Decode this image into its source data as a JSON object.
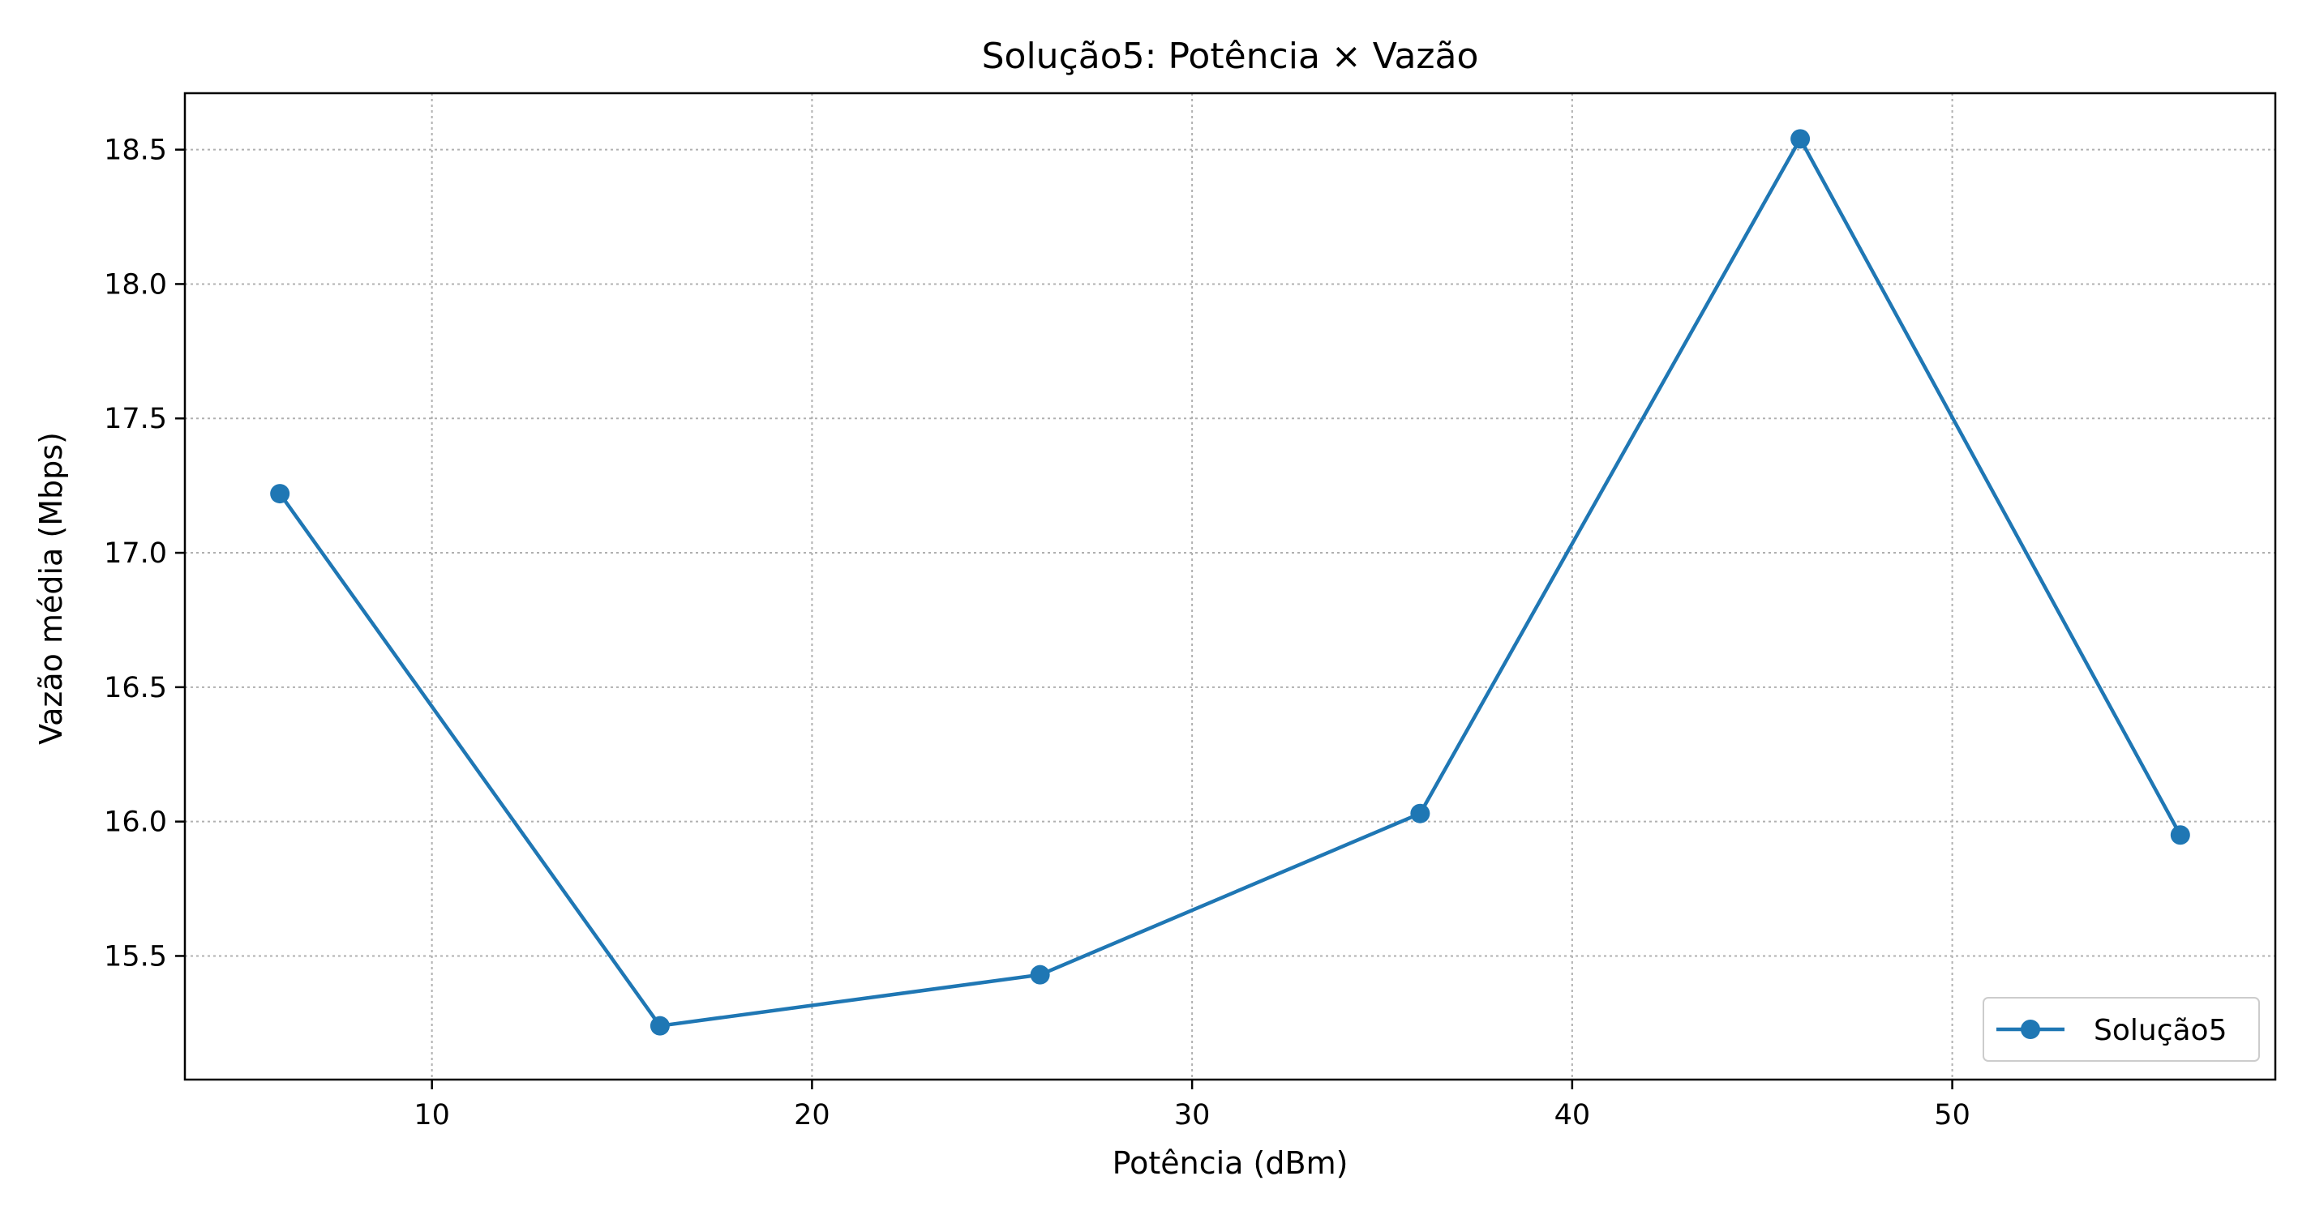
{
  "chart_data": {
    "type": "line",
    "title": "Solução5: Potência × Vazão",
    "xlabel": "Potência (dBm)",
    "ylabel": "Vazão média (Mbps)",
    "xlim": [
      3.5,
      58.5
    ],
    "ylim": [
      15.04,
      18.71
    ],
    "xticks": [
      10,
      20,
      30,
      40,
      50
    ],
    "yticks": [
      15.5,
      16.0,
      16.5,
      17.0,
      17.5,
      18.0,
      18.5
    ],
    "xtick_labels": [
      "10",
      "20",
      "30",
      "40",
      "50"
    ],
    "ytick_labels": [
      "15.5",
      "16.0",
      "16.5",
      "17.0",
      "17.5",
      "18.0",
      "18.5"
    ],
    "grid": true,
    "legend_position": "lower-right",
    "series": [
      {
        "name": "Solução5",
        "color": "#1f77b4",
        "marker": "circle",
        "x": [
          6,
          16,
          26,
          36,
          46,
          56
        ],
        "y": [
          17.22,
          15.24,
          15.43,
          16.03,
          18.54,
          15.95
        ]
      }
    ]
  }
}
